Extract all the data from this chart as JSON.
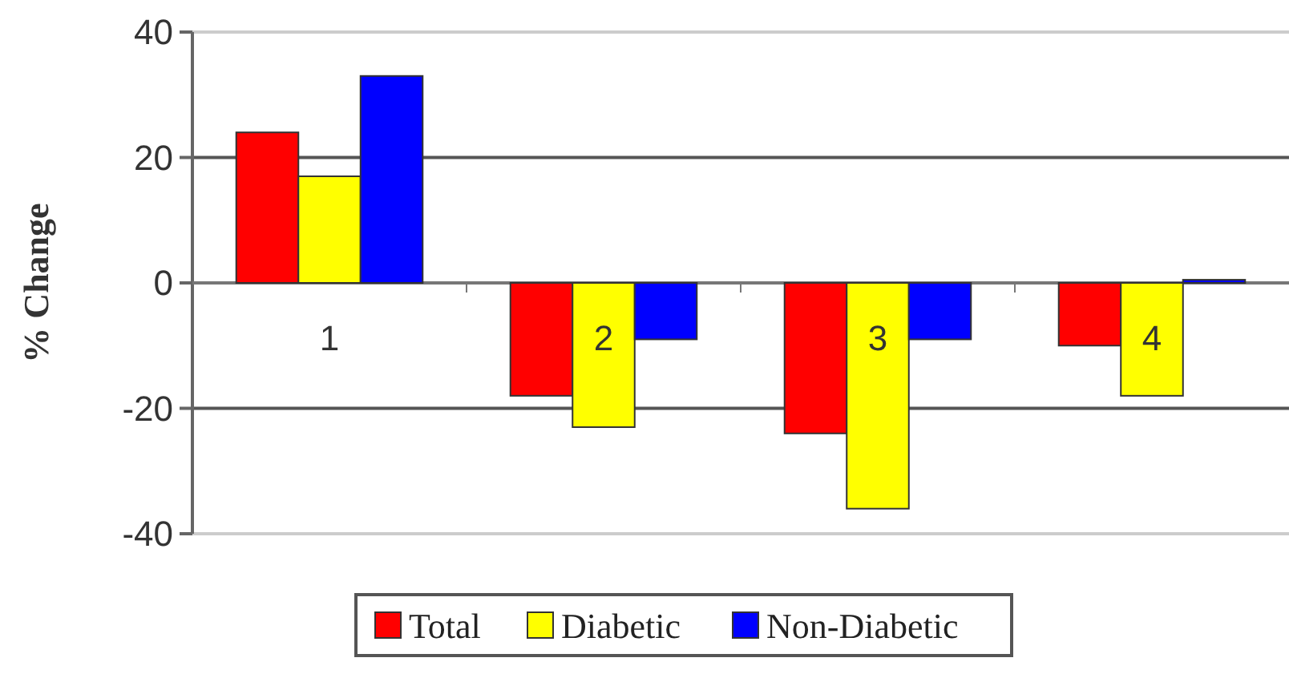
{
  "chart_data": {
    "type": "bar",
    "ylabel": "% Change",
    "categories": [
      "1",
      "2",
      "3",
      "4"
    ],
    "series": [
      {
        "name": "Total",
        "color": "#ff0000",
        "values": [
          24,
          -18,
          -24,
          -10
        ]
      },
      {
        "name": "Diabetic",
        "color": "#ffff00",
        "values": [
          17,
          -23,
          -36,
          -18
        ]
      },
      {
        "name": "Non-Diabetic",
        "color": "#0000ff",
        "values": [
          33,
          -9,
          -9,
          0.5
        ]
      }
    ],
    "ylim": [
      -40,
      40
    ],
    "yticks": [
      -40,
      -20,
      0,
      20,
      40
    ],
    "grid": "y",
    "legend": "bottom"
  }
}
